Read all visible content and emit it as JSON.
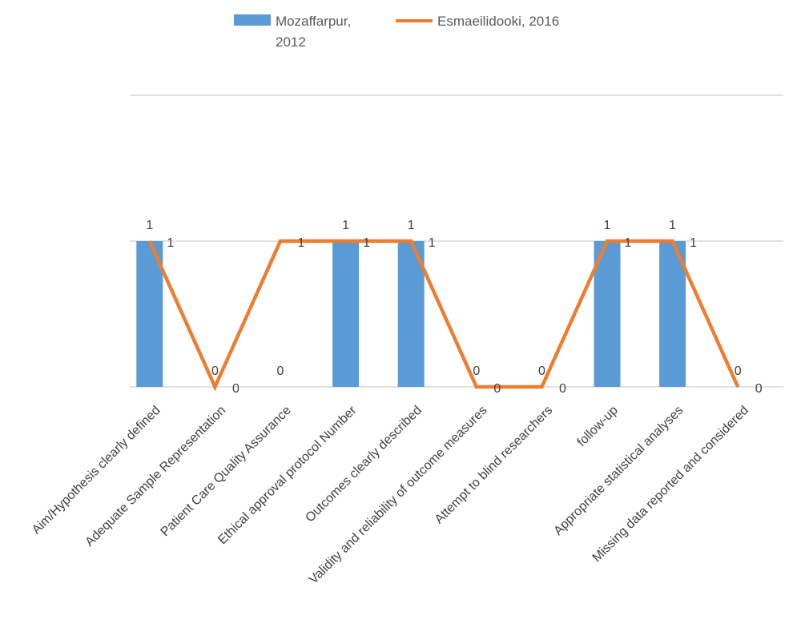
{
  "chart_data": {
    "type": "bar",
    "categories": [
      "Aim/Hypothesis clearly defined",
      "Adequate Sample Representation",
      "Patient Care Quality Assurance",
      "Ethical approval protocol Number",
      "Outcomes clearly described",
      "Validity and reliability of outcome measures",
      "Attempt to blind researchers",
      "follow-up",
      "Appropriate statistical analyses",
      "Missing data reported and considered"
    ],
    "series": [
      {
        "name": "Mozaffarpur, 2012",
        "kind": "bar",
        "color": "#5B9BD5",
        "values": [
          1,
          0,
          0,
          1,
          1,
          0,
          0,
          1,
          1,
          0
        ]
      },
      {
        "name": "Esmaeilidooki, 2016",
        "kind": "line",
        "color": "#ED7D31",
        "values": [
          1,
          0,
          1,
          1,
          1,
          0,
          0,
          1,
          1,
          0
        ]
      }
    ],
    "ylim": [
      0,
      1
    ],
    "grid": true,
    "legend": "top",
    "data_labels": true
  }
}
